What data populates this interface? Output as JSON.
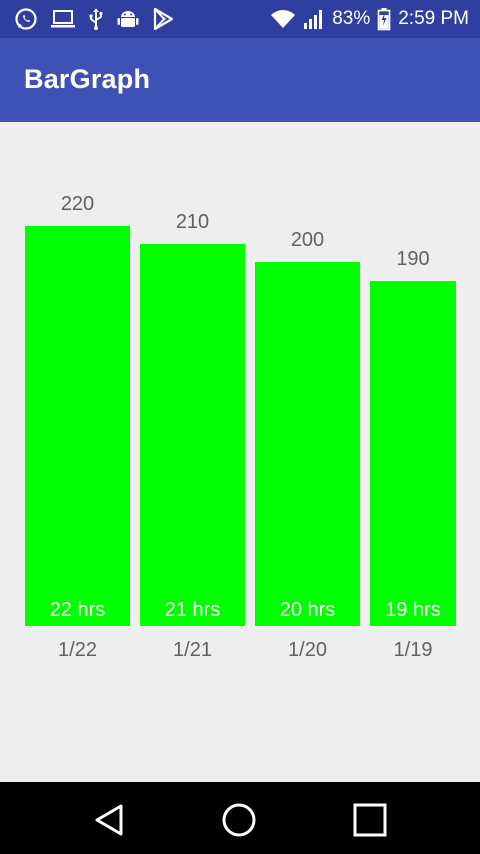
{
  "status_bar": {
    "left_icons": [
      "whatsapp-icon",
      "laptop-icon",
      "usb-icon",
      "android-icon",
      "play-store-icon"
    ],
    "right_icons": [
      "wifi-icon",
      "signal-icon",
      "battery-charging-icon"
    ],
    "battery": "83%",
    "time": "2:59 PM"
  },
  "app_bar": {
    "title": "BarGraph",
    "color": "#3f51b5"
  },
  "chart_data": {
    "type": "bar",
    "categories": [
      "1/22",
      "1/21",
      "1/20",
      "1/19"
    ],
    "values": [
      220,
      210,
      200,
      190
    ],
    "bar_labels": [
      "22 hrs",
      "21 hrs",
      "20 hrs",
      "19 hrs"
    ],
    "value_labels": [
      "220",
      "210",
      "200",
      "190"
    ],
    "bar_color": "#00ff00",
    "title": "",
    "xlabel": "",
    "ylabel": ""
  },
  "nav_bar": {
    "buttons": [
      "back-icon",
      "home-icon",
      "recents-icon"
    ]
  }
}
